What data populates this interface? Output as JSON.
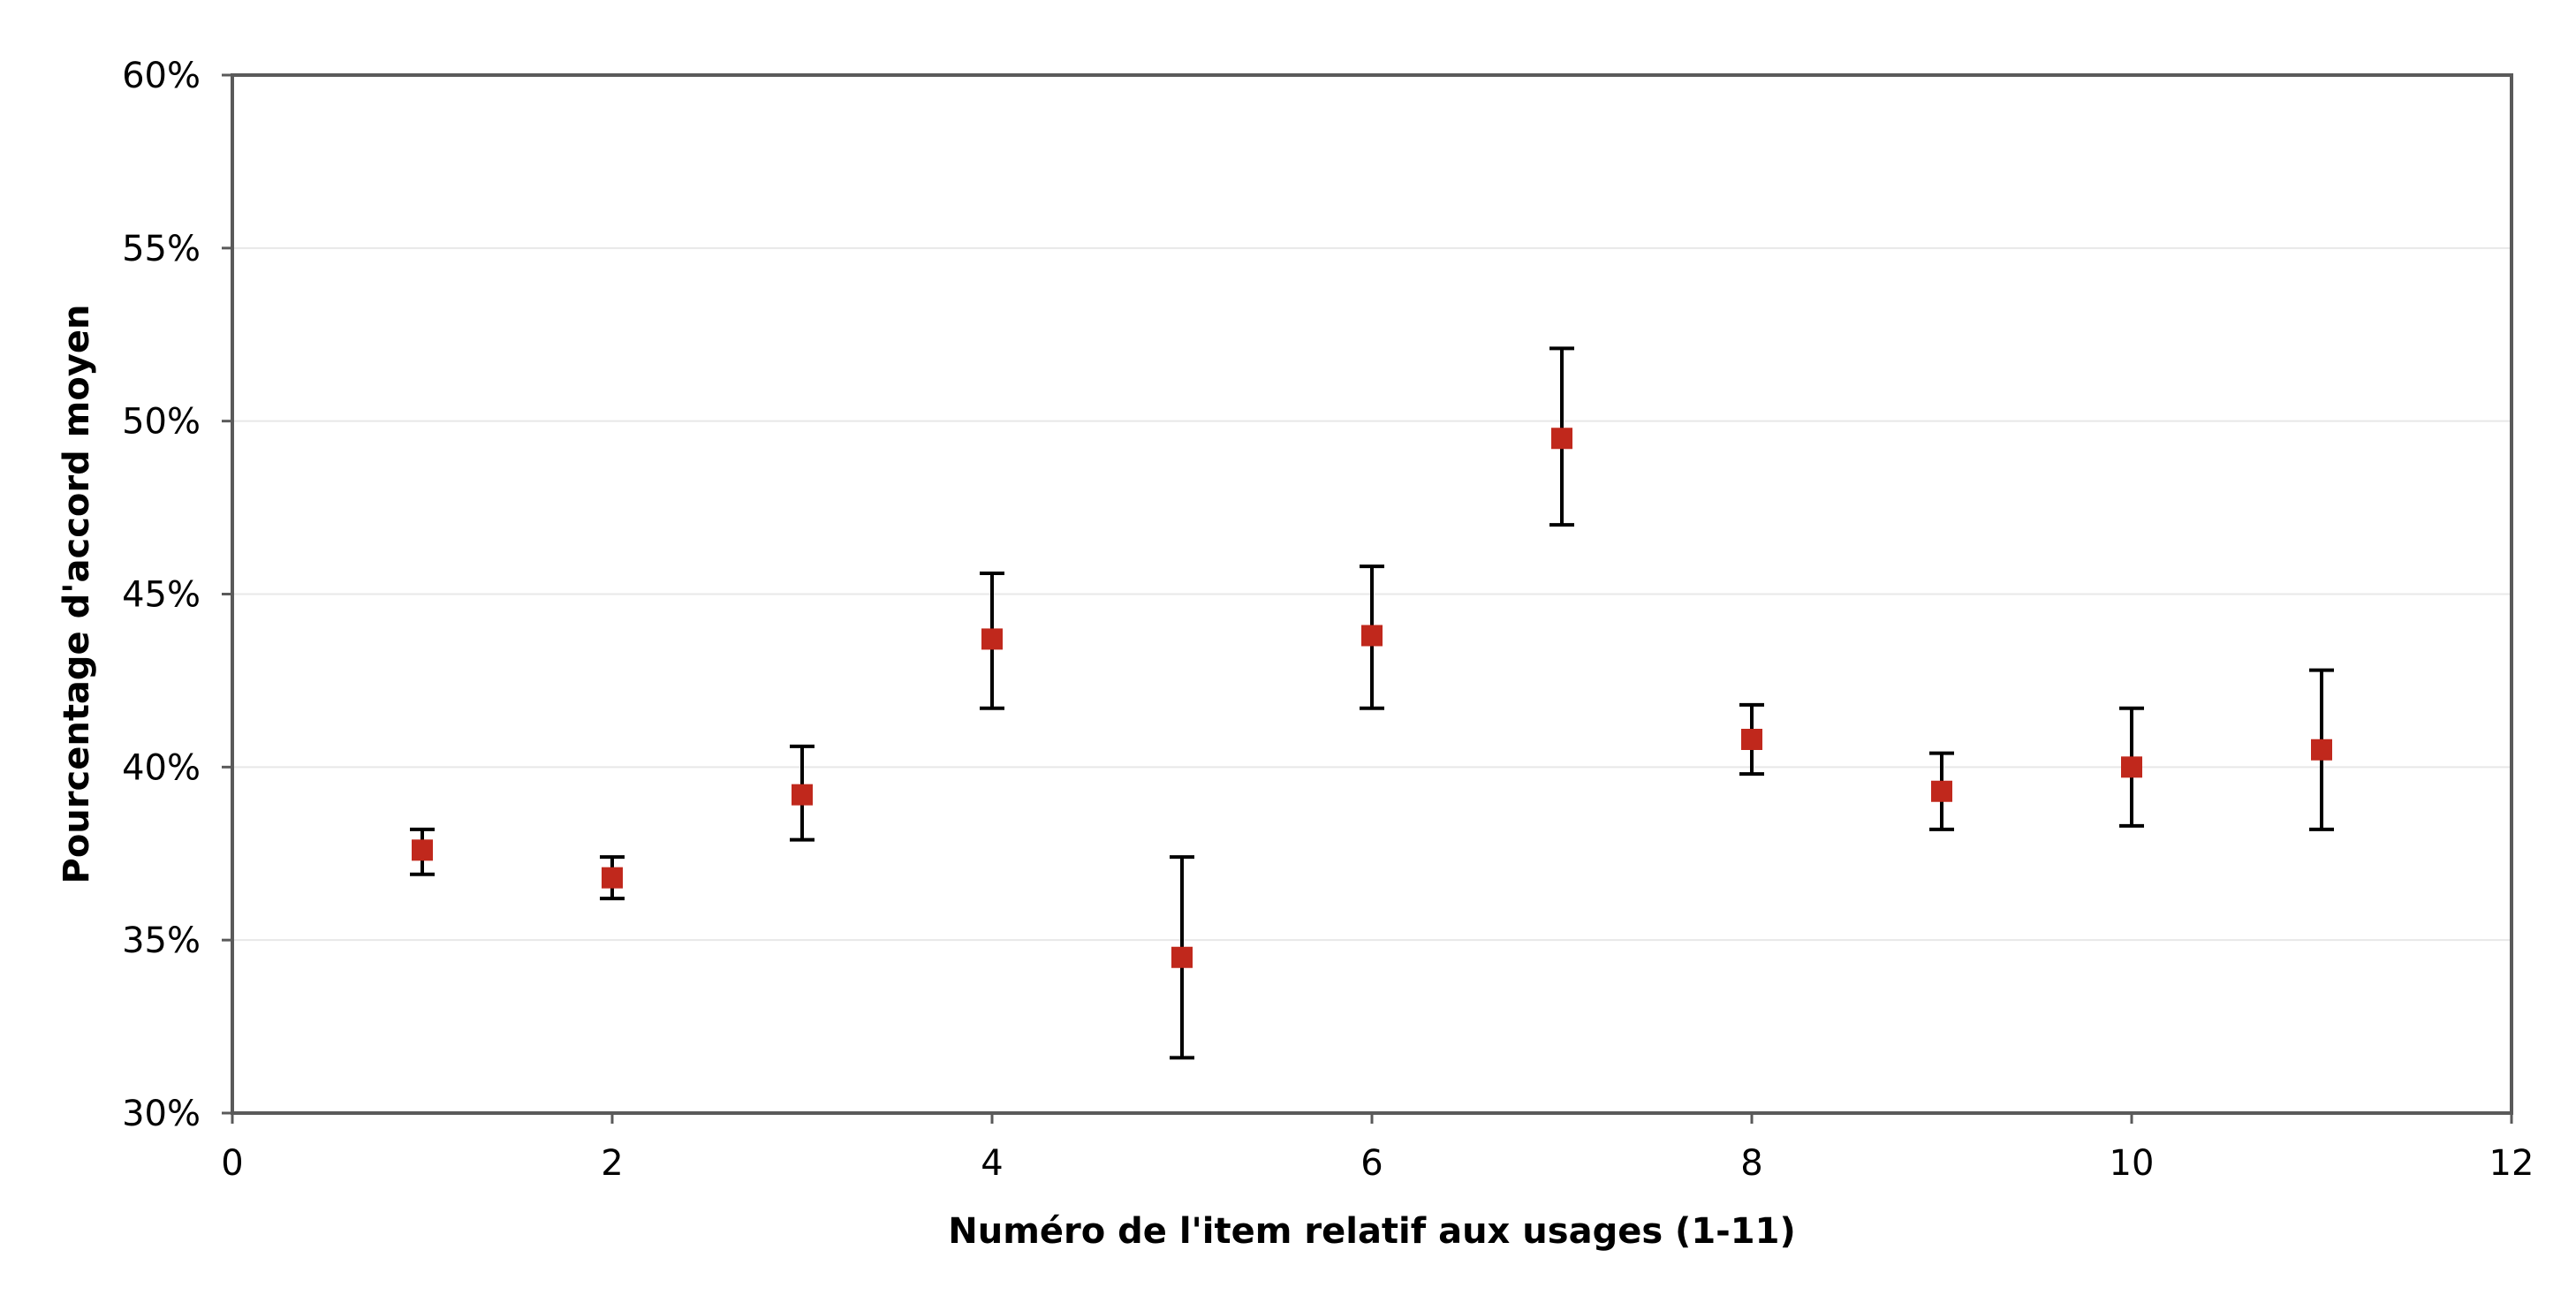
{
  "colors": {
    "marker": "#c0281c",
    "errorbar": "#000000",
    "frame": "#5a5a5a",
    "gridline": "#e8e8e8"
  },
  "chart_data": {
    "type": "scatter",
    "title": "",
    "xlabel": "Numéro de l'item relatif aux usages (1-11)",
    "ylabel": "Pourcentage d'accord moyen",
    "xlim": [
      0,
      12
    ],
    "ylim": [
      30,
      60
    ],
    "x_ticks": [
      0,
      2,
      4,
      6,
      8,
      10,
      12
    ],
    "x_tick_labels": [
      "0",
      "2",
      "4",
      "6",
      "8",
      "10",
      "12"
    ],
    "y_ticks": [
      30,
      35,
      40,
      45,
      50,
      55,
      60
    ],
    "y_tick_labels": [
      "30%",
      "35%",
      "40%",
      "45%",
      "50%",
      "55%",
      "60%"
    ],
    "grid": "horizontal",
    "marker": "square",
    "legend": "none",
    "series": [
      {
        "x": [
          1,
          2,
          3,
          4,
          5,
          6,
          7,
          8,
          9,
          10,
          11
        ],
        "y": [
          37.6,
          36.8,
          39.2,
          43.7,
          34.5,
          43.8,
          49.5,
          40.8,
          39.3,
          40.0,
          40.5
        ],
        "err_low": [
          36.9,
          36.2,
          37.9,
          41.7,
          31.6,
          41.7,
          47.0,
          39.8,
          38.2,
          38.3,
          38.2
        ],
        "err_high": [
          38.2,
          37.4,
          40.6,
          45.6,
          37.4,
          45.8,
          52.1,
          41.8,
          40.4,
          41.7,
          42.8
        ]
      }
    ]
  }
}
